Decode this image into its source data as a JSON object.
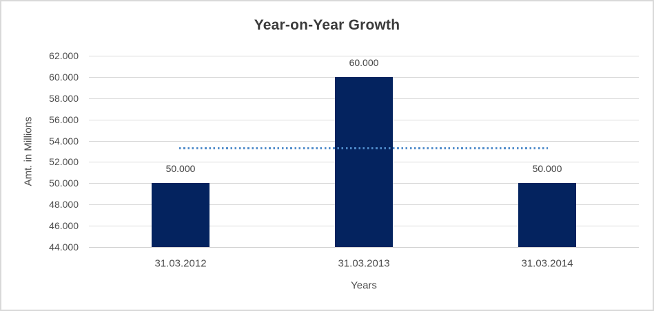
{
  "frame": {
    "background": "#ffffff",
    "border_color": "#d9d9d9"
  },
  "chart_data": {
    "type": "bar",
    "title": "Year-on-Year Growth",
    "xlabel": "Years",
    "ylabel": "Amt. in Millions",
    "categories": [
      "31.03.2012",
      "31.03.2013",
      "31.03.2014"
    ],
    "values": [
      50000,
      60000,
      50000
    ],
    "value_labels": [
      "50.000",
      "60.000",
      "50.000"
    ],
    "ylim": [
      44000,
      62000
    ],
    "y_tick_step": 2000,
    "y_tick_labels": [
      "62.000",
      "60.000",
      "58.000",
      "56.000",
      "54.000",
      "52.000",
      "50.000",
      "48.000",
      "46.000",
      "44.000"
    ],
    "grid": true,
    "legend": false,
    "trendline": {
      "kind": "average",
      "style": "dotted",
      "value": 53333
    },
    "colors": {
      "bar": "#04235f",
      "gridline": "#d9d9d9",
      "axis_line": "#cfcfcf",
      "title_text": "#3b3b3b",
      "tick_text": "#4d4d4d",
      "label_text": "#404040",
      "trendline": "#4f8bca"
    }
  }
}
